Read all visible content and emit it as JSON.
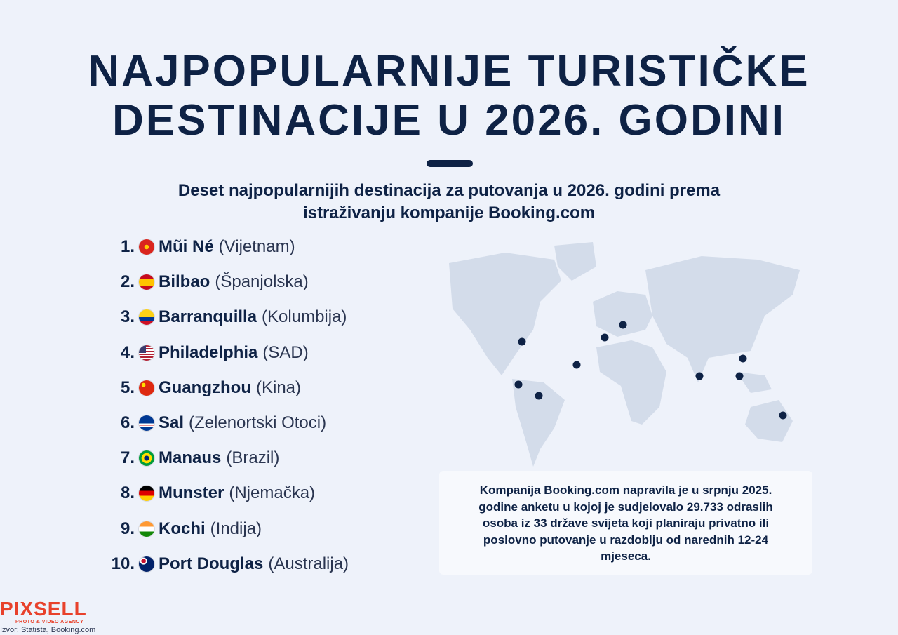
{
  "header": {
    "title_lines": [
      "NAJPOPULARNIJE TURISTIČKE",
      "DESTINACIJE U 2026. GODINI"
    ],
    "subtitle_lines": [
      "Deset najpopularnijih destinacija za putovanja u 2026. godini prema",
      "istraživanju kompanije Booking.com"
    ]
  },
  "list": [
    {
      "rank": "1.",
      "city": "Mũi Né",
      "country": "(Vijetnam)"
    },
    {
      "rank": "2.",
      "city": "Bilbao",
      "country": "(Španjolska)"
    },
    {
      "rank": "3.",
      "city": "Barranquilla",
      "country": "(Kolumbija)"
    },
    {
      "rank": "4.",
      "city": "Philadelphia",
      "country": "(SAD)"
    },
    {
      "rank": "5.",
      "city": "Guangzhou",
      "country": "(Kina)"
    },
    {
      "rank": "6.",
      "city": "Sal",
      "country": "(Zelenortski Otoci)"
    },
    {
      "rank": "7.",
      "city": "Manaus",
      "country": "(Brazil)"
    },
    {
      "rank": "8.",
      "city": "Munster",
      "country": "(Njemačka)"
    },
    {
      "rank": "9.",
      "city": "Kochi",
      "country": "(Indija)"
    },
    {
      "rank": "10.",
      "city": "Port Douglas",
      "country": "(Australija)"
    }
  ],
  "note_lines": [
    "Kompanija Booking.com napravila je u srpnju 2025.",
    "godine anketu u kojoj je sudjelovalo 29.733 odraslih",
    "osoba iz 33 države svijeta koji planiraju privatno ili",
    "poslovno putovanje u razdoblju od narednih 12-24",
    "mjeseca."
  ],
  "footer": {
    "logo": "PIXSELL",
    "logo_tagline": "PHOTO & VIDEO AGENCY",
    "source": "Izvor: Statista, Booking.com"
  }
}
